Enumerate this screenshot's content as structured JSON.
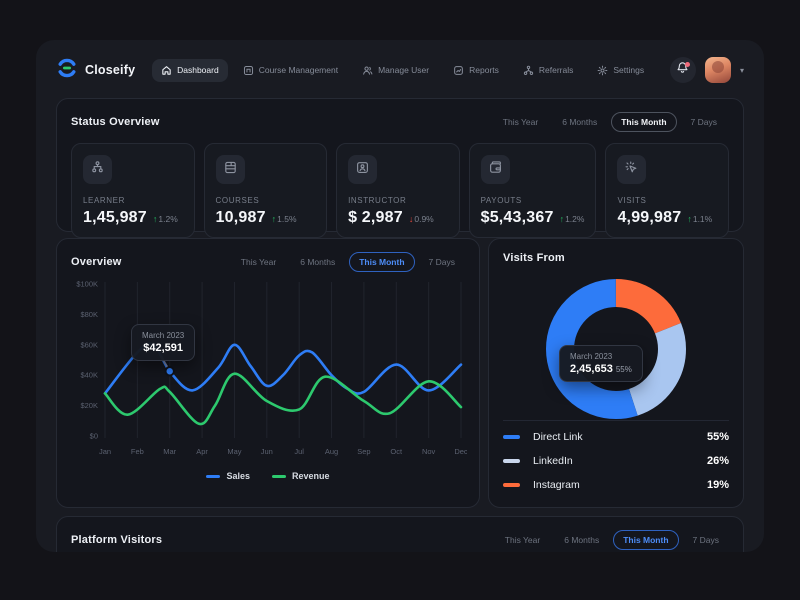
{
  "topbar": {
    "brand": "Closeify",
    "nav_items": [
      {
        "label": "Dashboard",
        "active": true
      },
      {
        "label": "Course Management",
        "active": false
      },
      {
        "label": "Manage User",
        "active": false
      },
      {
        "label": "Reports",
        "active": false
      },
      {
        "label": "Referrals",
        "active": false
      },
      {
        "label": "Settings",
        "active": false
      }
    ]
  },
  "filters": {
    "options": [
      "This Year",
      "6 Months",
      "This Month",
      "7 Days"
    ],
    "active": "This Month"
  },
  "status_overview": {
    "title": "Status Overview",
    "cards": [
      {
        "label": "LEARNER",
        "value": "1,45,987",
        "delta": "1.2%",
        "direction": "up",
        "icon": "learners-icon"
      },
      {
        "label": "COURSES",
        "value": "10,987",
        "delta": "1.5%",
        "direction": "up",
        "icon": "courses-icon"
      },
      {
        "label": "INSTRUCTOR",
        "value": "$ 2,987",
        "delta": "0.9%",
        "direction": "down",
        "icon": "instructor-icon"
      },
      {
        "label": "PAYOUTS",
        "value": "$5,43,367",
        "delta": "1.2%",
        "direction": "up",
        "icon": "payouts-icon"
      },
      {
        "label": "VISITS",
        "value": "4,99,987",
        "delta": "1.1%",
        "direction": "up",
        "icon": "visits-icon"
      }
    ]
  },
  "overview": {
    "title": "Overview"
  },
  "visits_from": {
    "title": "Visits From"
  },
  "platform_visitors": {
    "title": "Platform Visitors"
  },
  "chart_data": [
    {
      "type": "line",
      "title": "Overview",
      "x_labels": [
        "Jan",
        "Feb",
        "Mar",
        "Apr",
        "May",
        "Jun",
        "Jul",
        "Aug",
        "Sep",
        "Oct",
        "Nov",
        "Dec"
      ],
      "y_tick_labels": [
        "$100K",
        "$80K",
        "$60K",
        "$40K",
        "$20K",
        "$0"
      ],
      "ylim": [
        0,
        100
      ],
      "grid": "vertical-only",
      "legend_position": "bottom",
      "series": [
        {
          "name": "Sales",
          "color": "#2e7df6",
          "monthly_values_k": [
            28,
            55,
            42.6,
            32,
            60,
            33,
            53,
            40,
            29,
            47,
            30,
            47
          ]
        },
        {
          "name": "Revenue",
          "color": "#2dc96e",
          "monthly_values_k": [
            28,
            15,
            29,
            12,
            41,
            23,
            18,
            38,
            23,
            16,
            36,
            19
          ]
        }
      ],
      "render_points": {
        "Sales": [
          [
            0,
            28
          ],
          [
            1,
            55
          ],
          [
            1.5,
            60
          ],
          [
            2,
            42.6
          ],
          [
            2.7,
            30
          ],
          [
            3.5,
            45
          ],
          [
            4,
            60
          ],
          [
            4.5,
            46
          ],
          [
            5,
            33
          ],
          [
            5.5,
            40
          ],
          [
            6,
            53
          ],
          [
            6.4,
            55
          ],
          [
            7,
            40
          ],
          [
            7.5,
            31
          ],
          [
            8,
            29
          ],
          [
            9,
            47
          ],
          [
            10,
            30
          ],
          [
            11,
            47
          ]
        ],
        "Revenue": [
          [
            0,
            28
          ],
          [
            0.7,
            14
          ],
          [
            1.7,
            31
          ],
          [
            2,
            29
          ],
          [
            2.9,
            8
          ],
          [
            3.4,
            20
          ],
          [
            4,
            41
          ],
          [
            5,
            23
          ],
          [
            6,
            17.5
          ],
          [
            6.8,
            39
          ],
          [
            8,
            23
          ],
          [
            8.8,
            15
          ],
          [
            10,
            36
          ],
          [
            11,
            19
          ]
        ]
      },
      "tooltip": {
        "label": "March 2023",
        "value": "$42,591",
        "series": "Sales",
        "month": "Mar"
      },
      "marker": {
        "month_index": 2,
        "value_k": 42.6
      }
    },
    {
      "type": "pie",
      "title": "Visits From",
      "donut": true,
      "slices": [
        {
          "label": "Instagram",
          "percent": 19,
          "color": "#fd6b3b"
        },
        {
          "label": "LinkedIn",
          "percent": 26,
          "color": "#a9c6f0"
        },
        {
          "label": "Direct Link",
          "percent": 55,
          "color": "#2e7df6"
        }
      ],
      "legend": [
        {
          "label": "Direct Link",
          "percent": "55%",
          "color": "#2e7df6"
        },
        {
          "label": "LinkedIn",
          "percent": "26%",
          "color": "#c9d6ec"
        },
        {
          "label": "Instagram",
          "percent": "19%",
          "color": "#fd6b3b"
        }
      ],
      "center_tooltip": {
        "label": "March 2023",
        "value": "2,45,653",
        "percent": "55%"
      }
    }
  ]
}
